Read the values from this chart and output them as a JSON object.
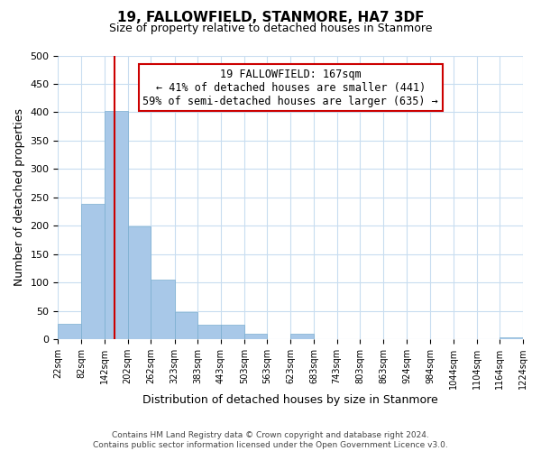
{
  "title": "19, FALLOWFIELD, STANMORE, HA7 3DF",
  "subtitle": "Size of property relative to detached houses in Stanmore",
  "xlabel": "Distribution of detached houses by size in Stanmore",
  "ylabel": "Number of detached properties",
  "bar_edges": [
    22,
    82,
    142,
    202,
    262,
    323,
    383,
    443,
    503,
    563,
    623,
    683,
    743,
    803,
    863,
    924,
    984,
    1044,
    1104,
    1164,
    1224
  ],
  "bar_heights": [
    27,
    238,
    402,
    199,
    105,
    48,
    25,
    25,
    10,
    0,
    10,
    0,
    0,
    0,
    0,
    0,
    0,
    0,
    0,
    3
  ],
  "bar_color": "#a8c8e8",
  "bar_edge_color": "#7aaed0",
  "property_line_x": 167,
  "property_line_color": "#cc0000",
  "annotation_title": "19 FALLOWFIELD: 167sqm",
  "annotation_line1": "← 41% of detached houses are smaller (441)",
  "annotation_line2": "59% of semi-detached houses are larger (635) →",
  "annotation_box_color": "#ffffff",
  "annotation_box_edgecolor": "#cc0000",
  "ylim": [
    0,
    500
  ],
  "tick_labels": [
    "22sqm",
    "82sqm",
    "142sqm",
    "202sqm",
    "262sqm",
    "323sqm",
    "383sqm",
    "443sqm",
    "503sqm",
    "563sqm",
    "623sqm",
    "683sqm",
    "743sqm",
    "803sqm",
    "863sqm",
    "924sqm",
    "984sqm",
    "1044sqm",
    "1104sqm",
    "1164sqm",
    "1224sqm"
  ],
  "footer_line1": "Contains HM Land Registry data © Crown copyright and database right 2024.",
  "footer_line2": "Contains public sector information licensed under the Open Government Licence v3.0.",
  "background_color": "#ffffff",
  "grid_color": "#c8ddf0"
}
